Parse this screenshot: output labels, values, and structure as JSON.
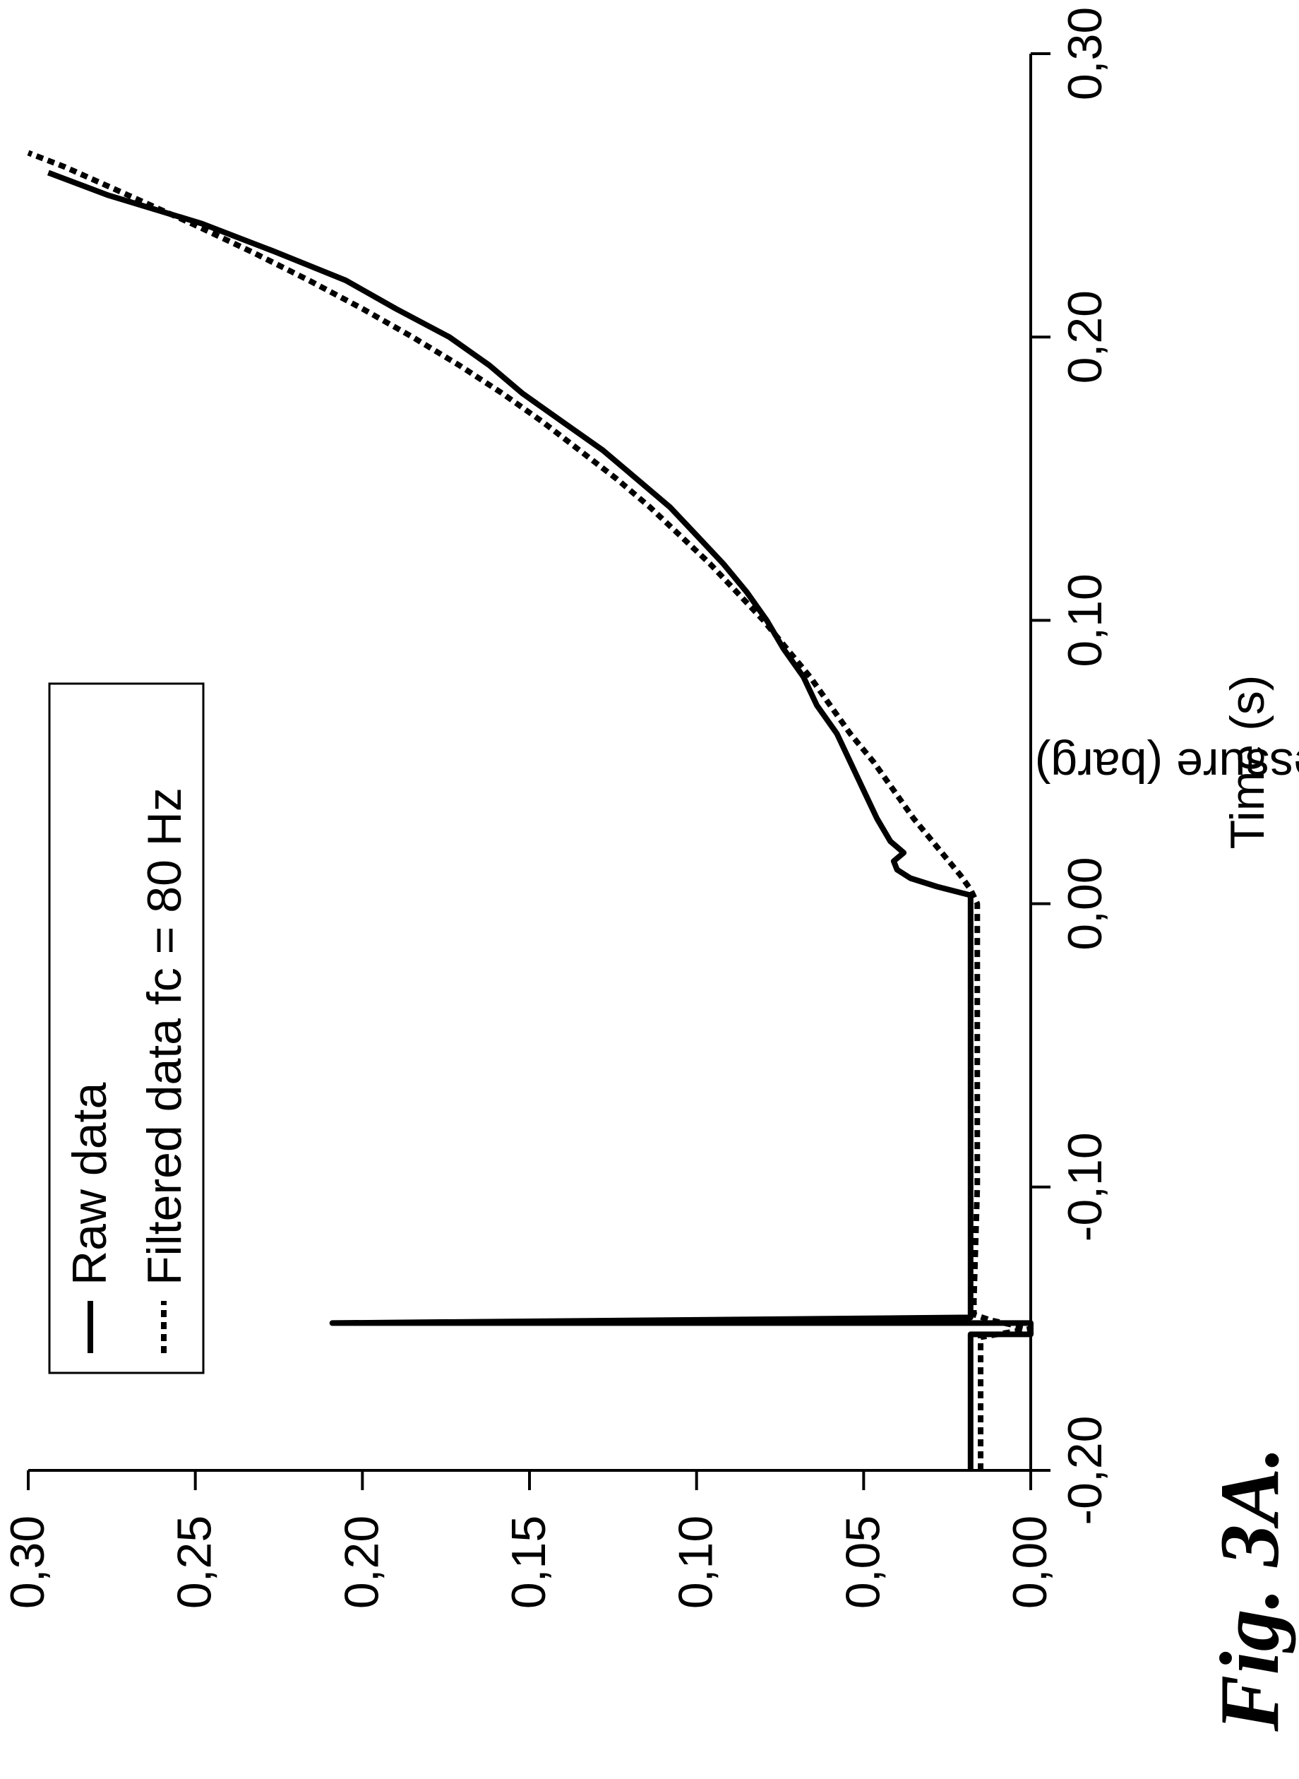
{
  "figure": {
    "caption": "Fig. 3A."
  },
  "chart_data": {
    "type": "line",
    "title": "",
    "xlabel": "Time (s)",
    "ylabel": "Explosion pressure (barg)",
    "xlim": [
      -0.2,
      0.3
    ],
    "ylim": [
      0.0,
      0.3
    ],
    "x_ticks": [
      "-0,20",
      "-0,10",
      "0,00",
      "0,10",
      "0,20",
      "0,30"
    ],
    "y_ticks": [
      "0,00",
      "0,05",
      "0,10",
      "0,15",
      "0,20",
      "0,25",
      "0,30"
    ],
    "legend": {
      "placement": "top-left"
    },
    "grid": false,
    "series": [
      {
        "name": "Raw data",
        "style": "solid",
        "color": "#000000",
        "points": [
          [
            -0.2,
            0.018
          ],
          [
            -0.152,
            0.018
          ],
          [
            -0.152,
            0.0
          ],
          [
            -0.148,
            0.0
          ],
          [
            -0.148,
            0.209
          ],
          [
            -0.146,
            0.018
          ],
          [
            -0.06,
            0.018
          ],
          [
            0.003,
            0.018
          ],
          [
            0.006,
            0.028
          ],
          [
            0.009,
            0.036
          ],
          [
            0.012,
            0.04
          ],
          [
            0.015,
            0.041
          ],
          [
            0.018,
            0.038
          ],
          [
            0.022,
            0.042
          ],
          [
            0.03,
            0.046
          ],
          [
            0.04,
            0.05
          ],
          [
            0.05,
            0.054
          ],
          [
            0.06,
            0.058
          ],
          [
            0.07,
            0.064
          ],
          [
            0.08,
            0.068
          ],
          [
            0.09,
            0.074
          ],
          [
            0.1,
            0.079
          ],
          [
            0.11,
            0.085
          ],
          [
            0.12,
            0.092
          ],
          [
            0.13,
            0.1
          ],
          [
            0.14,
            0.108
          ],
          [
            0.15,
            0.118
          ],
          [
            0.16,
            0.128
          ],
          [
            0.17,
            0.14
          ],
          [
            0.18,
            0.152
          ],
          [
            0.19,
            0.162
          ],
          [
            0.2,
            0.174
          ],
          [
            0.21,
            0.19
          ],
          [
            0.22,
            0.205
          ],
          [
            0.23,
            0.226
          ],
          [
            0.24,
            0.248
          ],
          [
            0.25,
            0.276
          ],
          [
            0.258,
            0.294
          ]
        ]
      },
      {
        "name": "Filtered data fc = 80 Hz",
        "style": "dashed",
        "color": "#000000",
        "points": [
          [
            -0.2,
            0.015
          ],
          [
            -0.153,
            0.015
          ],
          [
            -0.15,
            0.0
          ],
          [
            -0.147,
            0.012
          ],
          [
            -0.145,
            0.017
          ],
          [
            -0.14,
            0.017
          ],
          [
            -0.1,
            0.016
          ],
          [
            0.0,
            0.016
          ],
          [
            0.005,
            0.018
          ],
          [
            0.01,
            0.021
          ],
          [
            0.02,
            0.028
          ],
          [
            0.03,
            0.035
          ],
          [
            0.04,
            0.041
          ],
          [
            0.05,
            0.047
          ],
          [
            0.06,
            0.054
          ],
          [
            0.07,
            0.06
          ],
          [
            0.08,
            0.066
          ],
          [
            0.09,
            0.073
          ],
          [
            0.1,
            0.08
          ],
          [
            0.11,
            0.088
          ],
          [
            0.12,
            0.096
          ],
          [
            0.13,
            0.105
          ],
          [
            0.14,
            0.114
          ],
          [
            0.15,
            0.124
          ],
          [
            0.16,
            0.135
          ],
          [
            0.17,
            0.146
          ],
          [
            0.18,
            0.158
          ],
          [
            0.19,
            0.171
          ],
          [
            0.2,
            0.185
          ],
          [
            0.21,
            0.2
          ],
          [
            0.22,
            0.216
          ],
          [
            0.23,
            0.233
          ],
          [
            0.24,
            0.251
          ],
          [
            0.25,
            0.27
          ],
          [
            0.26,
            0.289
          ],
          [
            0.265,
            0.3
          ]
        ]
      }
    ]
  }
}
